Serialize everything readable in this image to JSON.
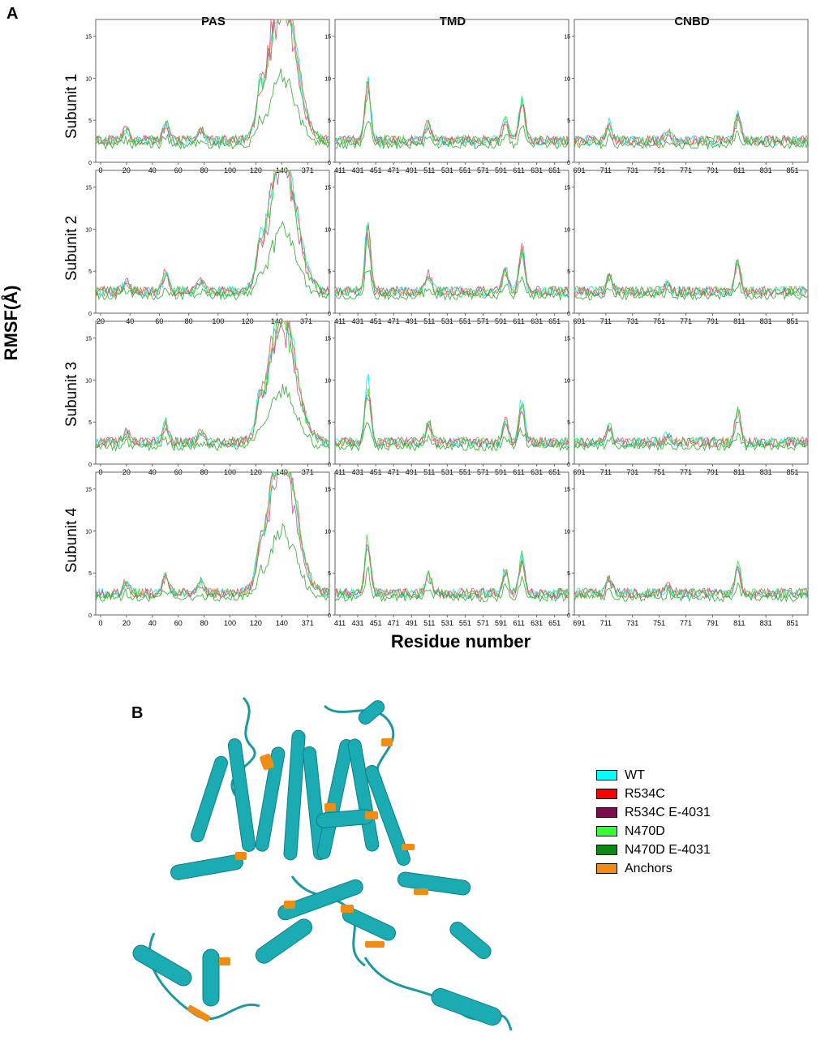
{
  "panel_a_label": "A",
  "panel_b_label": "B",
  "column_titles": [
    "PAS",
    "TMD",
    "CNBD"
  ],
  "row_titles": [
    "Subunit 1",
    "Subunit 2",
    "Subunit 3",
    "Subunit 4"
  ],
  "y_axis_title": "RMSF(Å)",
  "x_axis_title": "Residue number",
  "legend": [
    {
      "label": "WT",
      "color": "#00ffff"
    },
    {
      "label": "R534C",
      "color": "#ff0000"
    },
    {
      "label": "R534C E-4031",
      "color": "#7b0f4e"
    },
    {
      "label": "N470D",
      "color": "#33ff33"
    },
    {
      "label": "N470D E-4031",
      "color": "#0a8a12"
    },
    {
      "label": "Anchors",
      "color": "#f28c10"
    }
  ],
  "chart_data": {
    "type": "line",
    "ylim": [
      0,
      17
    ],
    "yticks": [
      0,
      5,
      10,
      15
    ],
    "series_names": [
      "WT",
      "R534C",
      "R534C E-4031",
      "N470D",
      "N470D E-4031"
    ],
    "series_colors": [
      "#00e8ff",
      "#ff5050",
      "#c0508a",
      "#33dd33",
      "#2fa82f"
    ],
    "columns": [
      {
        "title": "PAS",
        "tick_labels": [
          [
            "0",
            "20",
            "40",
            "60",
            "80",
            "100",
            "120",
            "140",
            "371"
          ],
          [
            "20",
            "40",
            "60",
            "80",
            "100",
            "120",
            "140",
            "371"
          ],
          [
            "0",
            "20",
            "40",
            "60",
            "80",
            "100",
            "120",
            "140",
            "371"
          ],
          [
            "0",
            "20",
            "40",
            "60",
            "80",
            "100",
            "120",
            "140",
            "371"
          ]
        ]
      },
      {
        "title": "TMD",
        "tick_labels": [
          [
            "411",
            "431",
            "451",
            "471",
            "491",
            "511",
            "531",
            "551",
            "571",
            "591",
            "611",
            "631",
            "651"
          ],
          [
            "411",
            "431",
            "451",
            "471",
            "491",
            "511",
            "531",
            "551",
            "571",
            "591",
            "611",
            "631",
            "651"
          ],
          [
            "411",
            "431",
            "451",
            "471",
            "491",
            "511",
            "531",
            "551",
            "571",
            "591",
            "611",
            "631",
            "651"
          ],
          [
            "411",
            "431",
            "451",
            "471",
            "491",
            "511",
            "531",
            "551",
            "571",
            "591",
            "611",
            "631",
            "651"
          ]
        ]
      },
      {
        "title": "CNBD",
        "tick_labels": [
          [
            "691",
            "711",
            "731",
            "751",
            "771",
            "791",
            "811",
            "831",
            "851"
          ],
          [
            "691",
            "711",
            "731",
            "751",
            "771",
            "791",
            "811",
            "831",
            "851"
          ],
          [
            "691",
            "711",
            "731",
            "751",
            "771",
            "791",
            "811",
            "831",
            "851"
          ],
          [
            "691",
            "711",
            "731",
            "751",
            "771",
            "791",
            "811",
            "831",
            "851"
          ]
        ]
      }
    ],
    "peak_values_max_per_panel": [
      [
        16,
        10,
        5.5
      ],
      [
        15.2,
        10.5,
        6
      ],
      [
        14,
        9.8,
        6.2
      ],
      [
        15.8,
        9.2,
        5.5
      ]
    ]
  }
}
